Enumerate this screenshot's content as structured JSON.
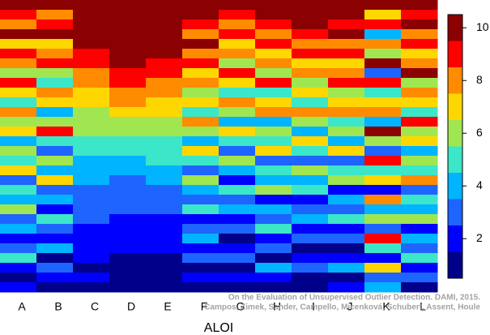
{
  "chart_data": {
    "type": "heatmap",
    "xlabel": "ALOI",
    "categories": [
      "A",
      "B",
      "C",
      "D",
      "E",
      "F",
      "G",
      "H",
      "I",
      "J",
      "K",
      "L"
    ],
    "z": [
      [
        10,
        9,
        8,
        10,
        7,
        9,
        8,
        6,
        9,
        7,
        5,
        8,
        6,
        7,
        4,
        6,
        5,
        7,
        3,
        5,
        4,
        6,
        3,
        4,
        2,
        3,
        5,
        2,
        1,
        2
      ],
      [
        10,
        8,
        9,
        10,
        7,
        8,
        9,
        6,
        5,
        8,
        7,
        4,
        6,
        9,
        5,
        3,
        6,
        4,
        7,
        3,
        4,
        2,
        5,
        3,
        2,
        4,
        1,
        3,
        2,
        1
      ],
      [
        10,
        10,
        10,
        10,
        10,
        9,
        9,
        8,
        8,
        7,
        7,
        6,
        6,
        6,
        5,
        5,
        4,
        4,
        4,
        3,
        3,
        3,
        3,
        2,
        2,
        2,
        2,
        1,
        2,
        1
      ],
      [
        10,
        10,
        10,
        10,
        10,
        10,
        10,
        9,
        9,
        8,
        8,
        7,
        6,
        6,
        5,
        5,
        4,
        4,
        3,
        3,
        3,
        3,
        2,
        2,
        2,
        2,
        1,
        1,
        1,
        1
      ],
      [
        10,
        10,
        10,
        10,
        10,
        10,
        9,
        9,
        8,
        8,
        7,
        7,
        6,
        6,
        5,
        5,
        5,
        4,
        4,
        3,
        3,
        3,
        2,
        2,
        2,
        2,
        1,
        1,
        1,
        1
      ],
      [
        10,
        10,
        9,
        8,
        10,
        8,
        9,
        7,
        8,
        6,
        7,
        5,
        8,
        6,
        4,
        7,
        5,
        3,
        6,
        4,
        3,
        5,
        2,
        3,
        4,
        2,
        3,
        1,
        2,
        1
      ],
      [
        10,
        9,
        8,
        9,
        7,
        8,
        6,
        9,
        7,
        5,
        8,
        6,
        4,
        7,
        5,
        3,
        6,
        4,
        2,
        5,
        3,
        4,
        2,
        3,
        1,
        2,
        3,
        1,
        2,
        1
      ],
      [
        10,
        10,
        9,
        8,
        9,
        7,
        8,
        6,
        9,
        5,
        7,
        8,
        4,
        6,
        5,
        7,
        3,
        5,
        4,
        6,
        2,
        4,
        3,
        5,
        2,
        3,
        1,
        4,
        2,
        1
      ],
      [
        10,
        10,
        10,
        9,
        8,
        9,
        7,
        8,
        6,
        7,
        5,
        8,
        6,
        4,
        7,
        5,
        3,
        6,
        4,
        5,
        2,
        3,
        4,
        2,
        3,
        1,
        2,
        3,
        1,
        1
      ],
      [
        10,
        10,
        9,
        10,
        8,
        9,
        7,
        8,
        9,
        6,
        7,
        8,
        5,
        6,
        4,
        7,
        3,
        5,
        6,
        2,
        4,
        3,
        5,
        2,
        3,
        1,
        2,
        4,
        1,
        2
      ],
      [
        10,
        7,
        9,
        4,
        8,
        6,
        10,
        3,
        9,
        5,
        7,
        8,
        4,
        10,
        6,
        3,
        9,
        5,
        7,
        2,
        8,
        4,
        6,
        3,
        9,
        5,
        2,
        7,
        3,
        4
      ],
      [
        10,
        9,
        10,
        8,
        9,
        7,
        8,
        10,
        6,
        8,
        7,
        5,
        9,
        6,
        7,
        4,
        6,
        5,
        8,
        3,
        5,
        4,
        6,
        2,
        4,
        3,
        5,
        2,
        3,
        1
      ]
    ],
    "colors": [
      "#00008b",
      "#0000ff",
      "#1e64ff",
      "#00b4ff",
      "#3ce6c8",
      "#a0e650",
      "#ffd700",
      "#ff8c00",
      "#ff0000",
      "#8b0000"
    ],
    "zlim": [
      0.5,
      10.5
    ],
    "zticks": [
      2,
      4,
      6,
      8,
      10
    ],
    "annotations": [
      "On the Evaluation of Unsupervised Outlier Detection. DAMI, 2015.",
      "Campos, Zimek, Sander, Campello, Micenková, Schubert, Assent, Houle"
    ]
  }
}
